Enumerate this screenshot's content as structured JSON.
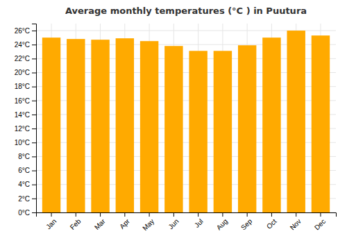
{
  "chart_data": {
    "type": "bar",
    "title": "Average monthly temperatures (°C ) in Puutura",
    "categories": [
      "Jan",
      "Feb",
      "Mar",
      "Apr",
      "May",
      "Jun",
      "Jul",
      "Aug",
      "Sep",
      "Oct",
      "Nov",
      "Dec"
    ],
    "values": [
      25.0,
      24.8,
      24.7,
      24.9,
      24.5,
      23.8,
      23.1,
      23.1,
      23.9,
      25.0,
      26.0,
      25.3
    ],
    "color": "#FFAA00",
    "ylim": [
      0,
      27
    ],
    "yticks": [
      {
        "value": 0,
        "label": "0°C"
      },
      {
        "value": 2,
        "label": "2°C"
      },
      {
        "value": 4,
        "label": "4°C"
      },
      {
        "value": 6,
        "label": "6°C"
      },
      {
        "value": 8,
        "label": "8°C"
      },
      {
        "value": 10,
        "label": "10°C"
      },
      {
        "value": 12,
        "label": "12°C"
      },
      {
        "value": 14,
        "label": "14°C"
      },
      {
        "value": 16,
        "label": "16°C"
      },
      {
        "value": 18,
        "label": "18°C"
      },
      {
        "value": 20,
        "label": "20°C"
      },
      {
        "value": 22,
        "label": "22°C"
      },
      {
        "value": 24,
        "label": "24°C"
      },
      {
        "value": 26,
        "label": "26°C"
      }
    ],
    "grid": true
  }
}
